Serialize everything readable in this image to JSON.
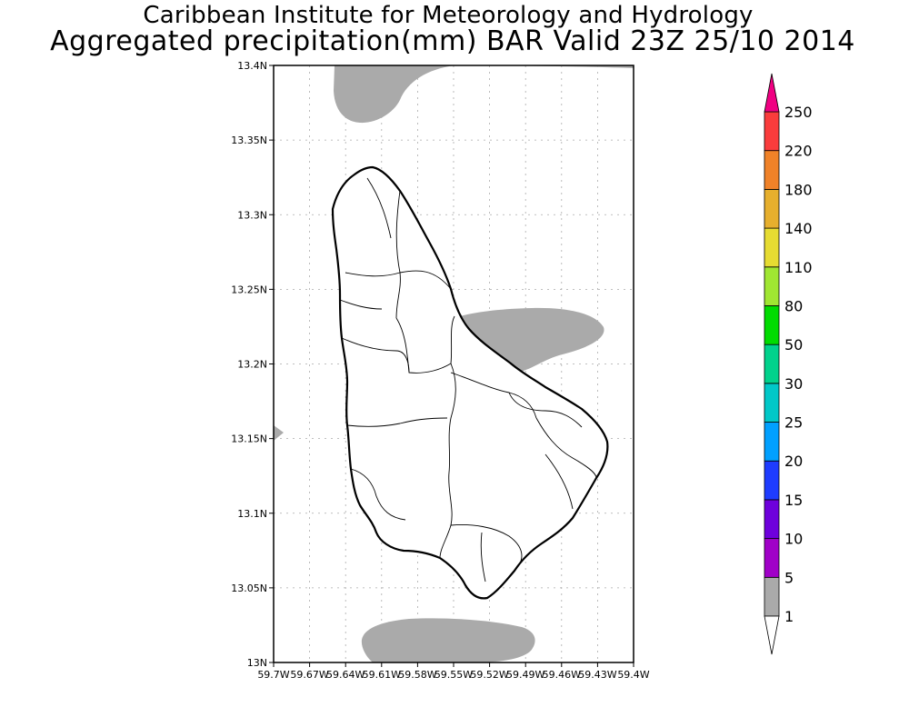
{
  "header": {
    "title_line1": "Caribbean Institute for Meteorology and Hydrology",
    "title_line2": "Aggregated precipitation(mm) BAR Valid 23Z 25/10 2014"
  },
  "map": {
    "lat_ticks": [
      "13N",
      "13.05N",
      "13.1N",
      "13.15N",
      "13.2N",
      "13.25N",
      "13.3N",
      "13.35N",
      "13.4N"
    ],
    "lon_ticks": [
      "59.7W",
      "59.67W",
      "59.64W",
      "59.61W",
      "59.58W",
      "59.55W",
      "59.52W",
      "59.49W",
      "59.46W",
      "59.43W",
      "59.4W"
    ],
    "lat_range": [
      13.0,
      13.4
    ],
    "lon_range": [
      -59.7,
      -59.4
    ],
    "grid": true,
    "shaded_area_color": "#aaaaaa"
  },
  "colorbar": {
    "labels": [
      "1",
      "5",
      "10",
      "15",
      "20",
      "25",
      "30",
      "50",
      "80",
      "110",
      "140",
      "180",
      "220",
      "250"
    ],
    "colors": [
      "#aaaaaa",
      "#a000c8",
      "#6e00dc",
      "#1e3cff",
      "#00a0ff",
      "#00c8c8",
      "#00d28c",
      "#00dc00",
      "#a0e632",
      "#e6dc32",
      "#e6af2d",
      "#f08228",
      "#fa3c3c",
      "#f00082"
    ],
    "under_color": "#ffffff",
    "over_color": "#f00082"
  }
}
